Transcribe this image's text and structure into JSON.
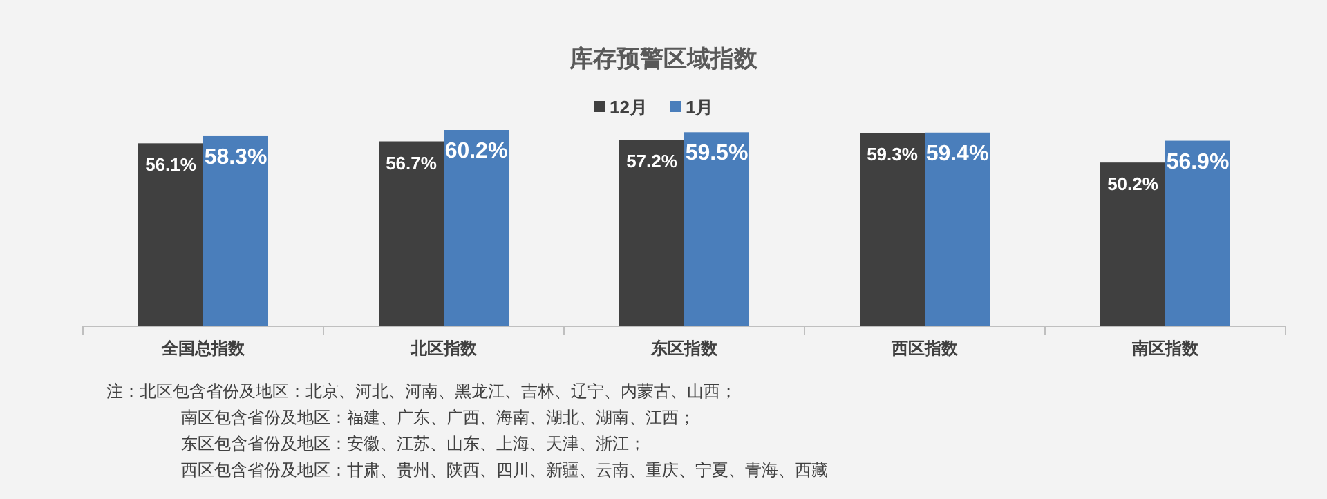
{
  "chart_data": {
    "type": "bar",
    "title": "库存预警区域指数",
    "categories": [
      "全国总指数",
      "北区指数",
      "东区指数",
      "西区指数",
      "南区指数"
    ],
    "series": [
      {
        "name": "12月",
        "color": "#404040",
        "values": [
          56.1,
          56.7,
          57.2,
          59.3,
          50.2
        ],
        "value_labels": [
          "56.1%",
          "56.7%",
          "57.2%",
          "59.3%",
          "50.2%"
        ]
      },
      {
        "name": "1月",
        "color": "#4a7ebb",
        "values": [
          58.3,
          60.2,
          59.5,
          59.4,
          56.9
        ],
        "value_labels": [
          "58.3%",
          "60.2%",
          "59.5%",
          "59.4%",
          "56.9%"
        ]
      }
    ],
    "legend": "top",
    "annotations": [
      "注：北区包含省份及地区：北京、河北、河南、黑龙江、吉林、辽宁、内蒙古、山西；",
      "南区包含省份及地区：福建、广东、广西、海南、湖北、湖南、江西；",
      "东区包含省份及地区：安徽、江苏、山东、上海、天津、浙江；",
      "西区包含省份及地区：甘肃、贵州、陕西、四川、新疆、云南、重庆、宁夏、青海、西藏"
    ]
  }
}
